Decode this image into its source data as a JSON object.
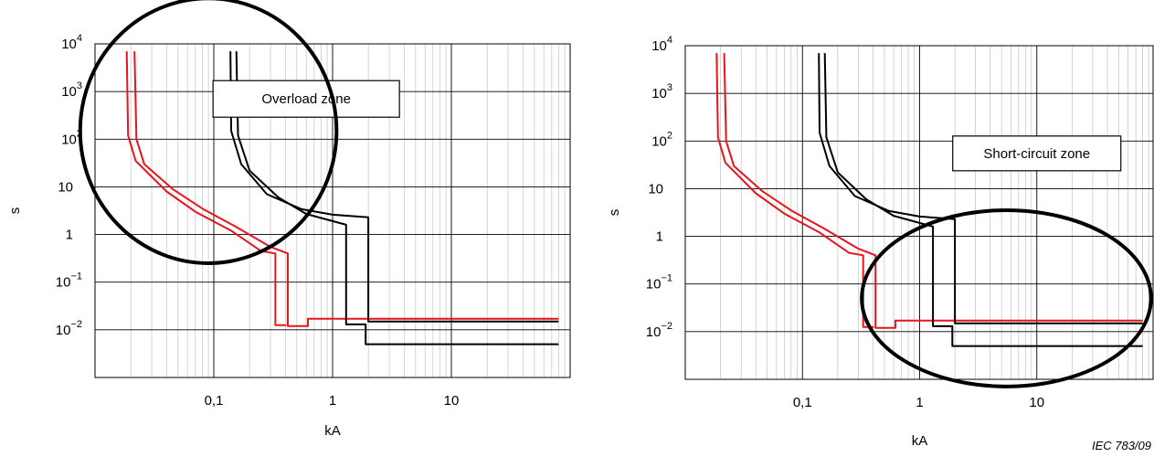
{
  "figure": {
    "footer": "IEC 783/09"
  },
  "chart_data": [
    {
      "type": "line",
      "xscale": "log",
      "yscale": "log",
      "xlim": [
        0.01,
        100
      ],
      "ylim": [
        0.001,
        10000
      ],
      "grid": true,
      "xlabel": "kA",
      "ylabel": "s",
      "xticks": [
        {
          "value": 0.1,
          "label": "0,1"
        },
        {
          "value": 1,
          "label": "1"
        },
        {
          "value": 10,
          "label": "10"
        }
      ],
      "yticks": [
        {
          "value": 10000,
          "base": "10",
          "exp": "4"
        },
        {
          "value": 1000,
          "base": "10",
          "exp": "3"
        },
        {
          "value": 100,
          "base": "10",
          "exp": "2"
        },
        {
          "value": 10,
          "base": "10",
          "exp": ""
        },
        {
          "value": 1,
          "base": "1",
          "exp": ""
        },
        {
          "value": 0.1,
          "base": "10",
          "exp": "−1"
        },
        {
          "value": 0.01,
          "base": "10",
          "exp": "−2"
        }
      ],
      "annotation": {
        "text": "Overload zone",
        "x": 0.6,
        "y": 700
      },
      "highlight_ellipse": {
        "center": [
          0.09,
          150
        ],
        "x_range": [
          0.0125,
          1.8
        ],
        "y_range": [
          0.25,
          90000
        ]
      },
      "colors": {
        "red": "#e8141b",
        "black": "#000000"
      },
      "series": [
        {
          "color": "red",
          "points": [
            [
              0.0215,
              7000
            ],
            [
              0.0223,
              100
            ],
            [
              0.026,
              30
            ],
            [
              0.045,
              9
            ],
            [
              0.08,
              3.5
            ],
            [
              0.15,
              1.5
            ],
            [
              0.3,
              0.55
            ],
            [
              0.42,
              0.4
            ],
            [
              0.42,
              0.012
            ],
            [
              0.62,
              0.012
            ],
            [
              0.62,
              0.017
            ],
            [
              80,
              0.017
            ]
          ]
        },
        {
          "color": "red",
          "points": [
            [
              0.0185,
              7000
            ],
            [
              0.019,
              120
            ],
            [
              0.022,
              35
            ],
            [
              0.04,
              8
            ],
            [
              0.07,
              3
            ],
            [
              0.14,
              1.2
            ],
            [
              0.25,
              0.45
            ],
            [
              0.33,
              0.4
            ],
            [
              0.33,
              0.0125
            ],
            [
              0.4,
              0.0125
            ],
            [
              0.4,
              0.012
            ]
          ]
        },
        {
          "color": "black",
          "points": [
            [
              0.155,
              7000
            ],
            [
              0.16,
              120
            ],
            [
              0.2,
              22
            ],
            [
              0.35,
              6
            ],
            [
              0.6,
              2.7
            ],
            [
              1.3,
              1.6
            ],
            [
              1.3,
              0.013
            ],
            [
              1.9,
              0.013
            ],
            [
              1.9,
              0.005
            ],
            [
              80,
              0.005
            ]
          ]
        },
        {
          "color": "black",
          "points": [
            [
              0.138,
              7000
            ],
            [
              0.14,
              150
            ],
            [
              0.17,
              30
            ],
            [
              0.28,
              7
            ],
            [
              0.55,
              3.4
            ],
            [
              1.0,
              2.6
            ],
            [
              2.0,
              2.3
            ],
            [
              2.0,
              0.015
            ],
            [
              80,
              0.015
            ]
          ]
        }
      ]
    },
    {
      "type": "line",
      "xscale": "log",
      "yscale": "log",
      "xlim": [
        0.01,
        100
      ],
      "ylim": [
        0.001,
        10000
      ],
      "grid": true,
      "xlabel": "kA",
      "ylabel": "s",
      "xticks": [
        {
          "value": 0.1,
          "label": "0,1"
        },
        {
          "value": 1,
          "label": "1"
        },
        {
          "value": 10,
          "label": "10"
        }
      ],
      "yticks": [
        {
          "value": 10000,
          "base": "10",
          "exp": "4"
        },
        {
          "value": 1000,
          "base": "10",
          "exp": "3"
        },
        {
          "value": 100,
          "base": "10",
          "exp": "2"
        },
        {
          "value": 10,
          "base": "10",
          "exp": ""
        },
        {
          "value": 1,
          "base": "1",
          "exp": ""
        },
        {
          "value": 0.1,
          "base": "10",
          "exp": "−1"
        },
        {
          "value": 0.01,
          "base": "10",
          "exp": "−2"
        }
      ],
      "annotation": {
        "text": "Short-circuit zone",
        "x": 10,
        "y": 55
      },
      "highlight_ellipse": {
        "center": [
          5.5,
          0.05
        ],
        "x_range": [
          0.34,
          100
        ],
        "y_range": [
          0.0006,
          3
        ]
      },
      "colors": {
        "red": "#e8141b",
        "black": "#000000"
      },
      "series": [
        {
          "color": "red",
          "points": [
            [
              0.0215,
              7000
            ],
            [
              0.0223,
              100
            ],
            [
              0.026,
              30
            ],
            [
              0.045,
              9
            ],
            [
              0.08,
              3.5
            ],
            [
              0.15,
              1.5
            ],
            [
              0.3,
              0.55
            ],
            [
              0.42,
              0.4
            ],
            [
              0.42,
              0.012
            ],
            [
              0.62,
              0.012
            ],
            [
              0.62,
              0.017
            ],
            [
              80,
              0.017
            ]
          ]
        },
        {
          "color": "red",
          "points": [
            [
              0.0185,
              7000
            ],
            [
              0.019,
              120
            ],
            [
              0.022,
              35
            ],
            [
              0.04,
              8
            ],
            [
              0.07,
              3
            ],
            [
              0.14,
              1.2
            ],
            [
              0.25,
              0.45
            ],
            [
              0.33,
              0.4
            ],
            [
              0.33,
              0.0125
            ],
            [
              0.4,
              0.0125
            ],
            [
              0.4,
              0.012
            ]
          ]
        },
        {
          "color": "black",
          "points": [
            [
              0.155,
              7000
            ],
            [
              0.16,
              120
            ],
            [
              0.2,
              22
            ],
            [
              0.35,
              6
            ],
            [
              0.6,
              2.7
            ],
            [
              1.3,
              1.6
            ],
            [
              1.3,
              0.013
            ],
            [
              1.9,
              0.013
            ],
            [
              1.9,
              0.005
            ],
            [
              80,
              0.005
            ]
          ]
        },
        {
          "color": "black",
          "points": [
            [
              0.138,
              7000
            ],
            [
              0.14,
              150
            ],
            [
              0.17,
              30
            ],
            [
              0.28,
              7
            ],
            [
              0.55,
              3.4
            ],
            [
              1.0,
              2.6
            ],
            [
              2.0,
              2.3
            ],
            [
              2.0,
              0.015
            ],
            [
              80,
              0.015
            ]
          ]
        }
      ]
    }
  ]
}
